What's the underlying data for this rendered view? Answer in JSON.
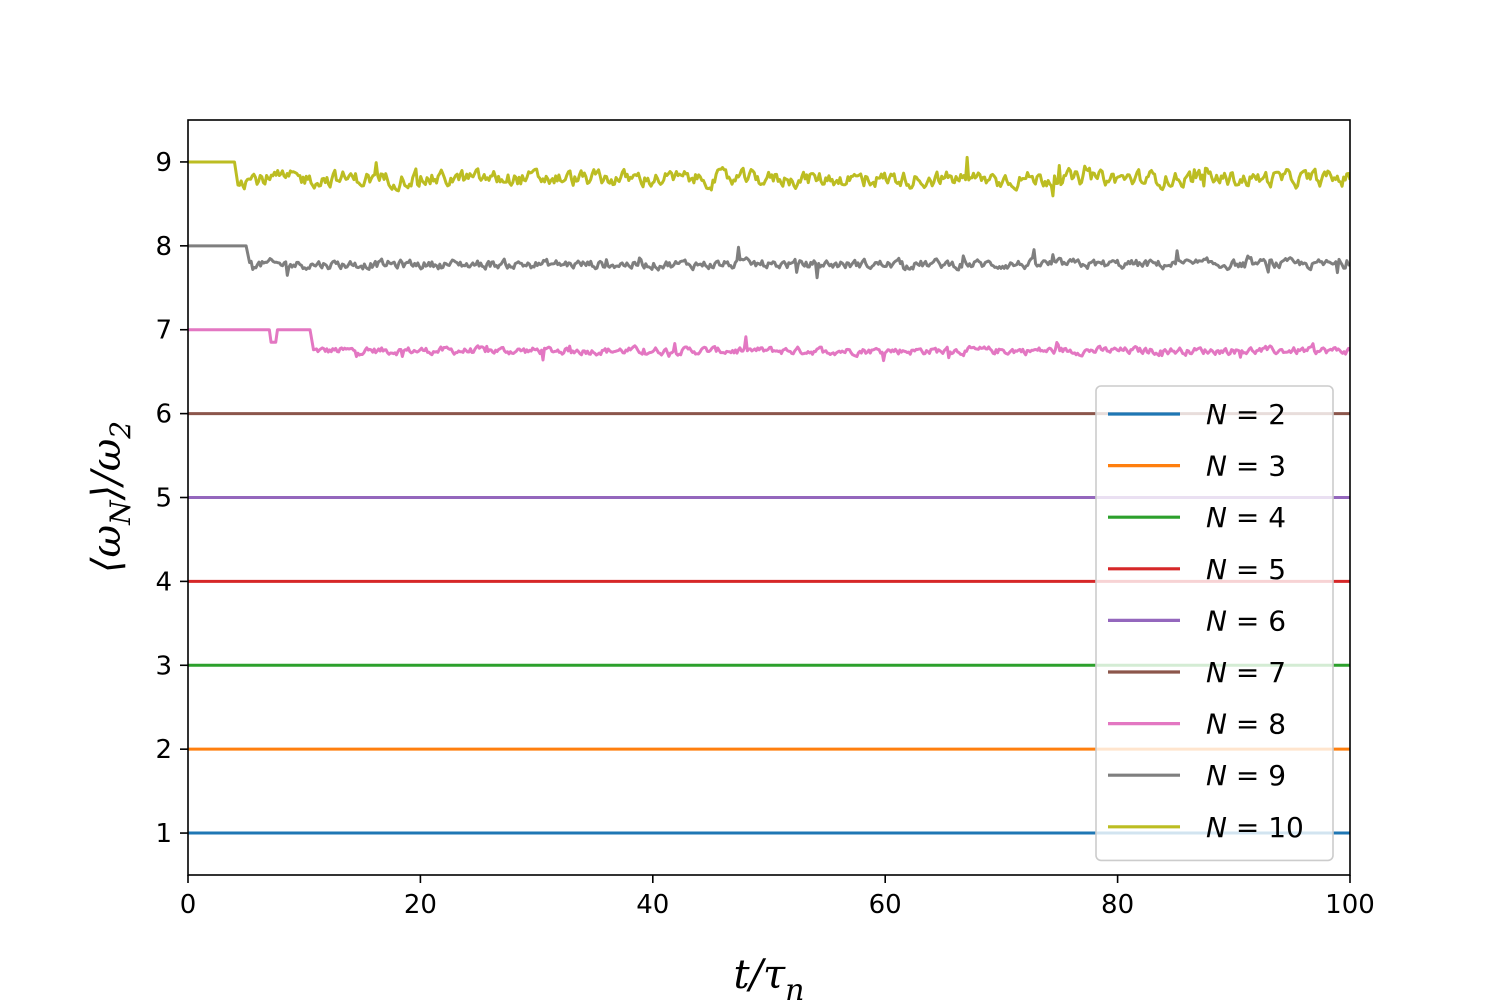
{
  "chart_data": {
    "type": "line",
    "title": "",
    "xlabel": "t/τ_n",
    "ylabel": "⟨ω_N⟩/ω_2",
    "xlim": [
      0,
      100
    ],
    "ylim": [
      0.5,
      9.5
    ],
    "x_ticks": [
      0,
      20,
      40,
      60,
      80,
      100
    ],
    "y_ticks": [
      1,
      2,
      3,
      4,
      5,
      6,
      7,
      8,
      9
    ],
    "grid": false,
    "legend_position": "lower-right",
    "series": [
      {
        "name": "N = 2",
        "legend_var": "N",
        "legend_val": "2",
        "color": "#1f77b4",
        "constant": 1
      },
      {
        "name": "N = 3",
        "legend_var": "N",
        "legend_val": "3",
        "color": "#ff7f0e",
        "constant": 2
      },
      {
        "name": "N = 4",
        "legend_var": "N",
        "legend_val": "4",
        "color": "#2ca02c",
        "constant": 3
      },
      {
        "name": "N = 5",
        "legend_var": "N",
        "legend_val": "5",
        "color": "#d62728",
        "constant": 4
      },
      {
        "name": "N = 6",
        "legend_var": "N",
        "legend_val": "6",
        "color": "#9467bd",
        "constant": 5
      },
      {
        "name": "N = 7",
        "legend_var": "N",
        "legend_val": "7",
        "color": "#8c564b",
        "constant": 6
      },
      {
        "name": "N = 8",
        "legend_var": "N",
        "legend_val": "8",
        "color": "#e377c2",
        "initial": 7,
        "dip": {
          "start": 7.0,
          "end": 7.7,
          "value": 6.85
        },
        "transition": 10.5,
        "mean": 6.75,
        "amplitude": 0.08,
        "samples": 700
      },
      {
        "name": "N = 9",
        "legend_var": "N",
        "legend_val": "9",
        "color": "#7f7f7f",
        "initial": 8,
        "transition": 5.0,
        "mean": 7.78,
        "amplitude": 0.1,
        "samples": 700
      },
      {
        "name": "N = 10",
        "legend_var": "N",
        "legend_val": "10",
        "color": "#bcbd22",
        "initial": 9,
        "transition": 4.0,
        "mean": 8.8,
        "amplitude": 0.17,
        "samples": 700
      }
    ]
  }
}
